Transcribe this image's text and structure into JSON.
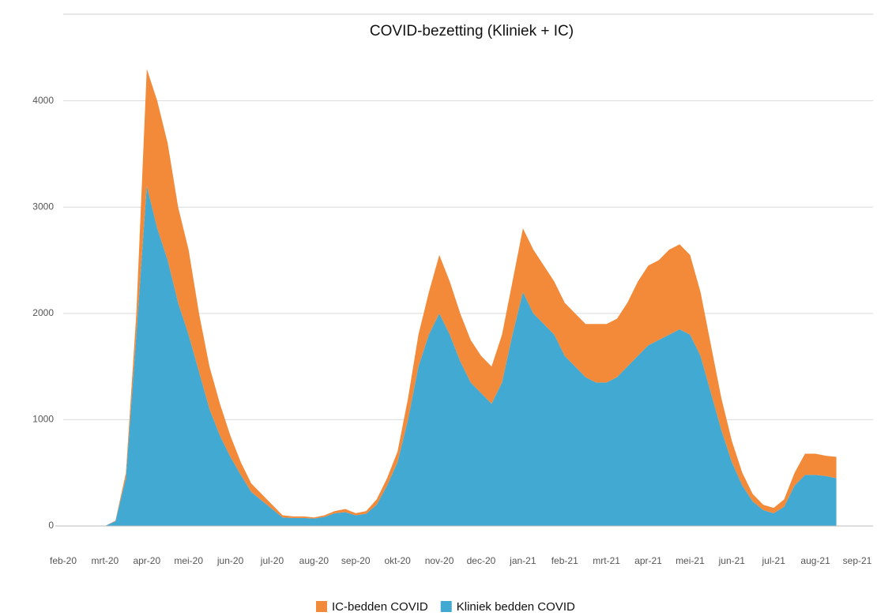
{
  "chart_data": {
    "type": "stacked-area",
    "title": "COVID-bezetting (Kliniek + IC)",
    "categories": [
      "feb-20",
      null,
      null,
      null,
      "mrt-20",
      null,
      null,
      null,
      "apr-20",
      null,
      null,
      null,
      "mei-20",
      null,
      null,
      null,
      "jun-20",
      null,
      null,
      null,
      "jul-20",
      null,
      null,
      null,
      "aug-20",
      null,
      null,
      null,
      "sep-20",
      null,
      null,
      null,
      "okt-20",
      null,
      null,
      null,
      "nov-20",
      null,
      null,
      null,
      "dec-20",
      null,
      null,
      null,
      "jan-21",
      null,
      null,
      null,
      "feb-21",
      null,
      null,
      null,
      "mrt-21",
      null,
      null,
      null,
      "apr-21",
      null,
      null,
      null,
      "mei-21",
      null,
      null,
      null,
      "jun-21",
      null,
      null,
      null,
      "jul-21",
      null,
      null,
      null,
      "aug-21",
      null,
      null,
      null,
      "sep-21"
    ],
    "series": [
      {
        "name": "IC-bedden COVID",
        "color": "#f28a3a",
        "values": [
          null,
          null,
          null,
          null,
          0,
          5,
          50,
          200,
          1100,
          1200,
          1100,
          900,
          800,
          550,
          400,
          300,
          200,
          120,
          80,
          60,
          40,
          20,
          15,
          15,
          10,
          15,
          20,
          30,
          20,
          25,
          50,
          70,
          100,
          200,
          300,
          400,
          550,
          500,
          450,
          400,
          350,
          350,
          450,
          500,
          600,
          600,
          550,
          500,
          500,
          500,
          500,
          550,
          550,
          550,
          600,
          700,
          750,
          750,
          800,
          800,
          750,
          600,
          450,
          300,
          200,
          120,
          70,
          50,
          50,
          70,
          120,
          200,
          200,
          190,
          200,
          null,
          null
        ]
      },
      {
        "name": "Kliniek bedden COVID",
        "color": "#42a9d2",
        "values": [
          null,
          null,
          null,
          null,
          0,
          45,
          450,
          1800,
          3200,
          2800,
          2500,
          2100,
          1800,
          1450,
          1100,
          850,
          650,
          480,
          320,
          240,
          160,
          80,
          75,
          75,
          70,
          85,
          120,
          130,
          100,
          115,
          200,
          380,
          600,
          1000,
          1500,
          1800,
          2000,
          1800,
          1550,
          1350,
          1250,
          1150,
          1350,
          1800,
          2200,
          2000,
          1900,
          1800,
          1600,
          1500,
          1400,
          1350,
          1350,
          1400,
          1500,
          1600,
          1700,
          1750,
          1800,
          1850,
          1800,
          1600,
          1250,
          900,
          600,
          380,
          230,
          150,
          120,
          180,
          380,
          480,
          480,
          470,
          450,
          null,
          null
        ]
      }
    ],
    "ylim": [
      0,
      4800
    ],
    "yticks": [
      0,
      1000,
      2000,
      3000,
      4000
    ],
    "grid": true
  }
}
